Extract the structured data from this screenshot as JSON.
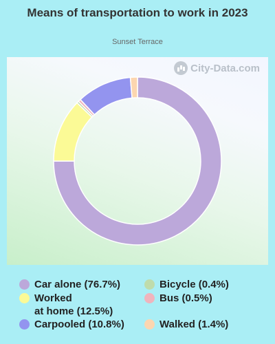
{
  "chart_data": {
    "type": "pie",
    "title": "Means of transportation to work in 2023",
    "subtitle": "Sunset Terrace",
    "categories": [
      "Car alone",
      "Worked at home",
      "Carpooled",
      "Bicycle",
      "Bus",
      "Walked"
    ],
    "values": [
      76.7,
      12.5,
      10.8,
      0.4,
      0.5,
      1.4
    ],
    "colors": [
      "#bca8da",
      "#fbfa96",
      "#9394ef",
      "#bfdcac",
      "#f0b4bd",
      "#fcd6b0"
    ],
    "legend_labels": [
      "Car alone (76.7%)",
      "Worked\nat home (12.5%)",
      "Carpooled (10.8%)",
      "Bicycle (0.4%)",
      "Bus (0.5%)",
      "Walked (1.4%)"
    ],
    "legend_placement": "bottom",
    "donut": true
  },
  "watermark": "City-Data.com"
}
